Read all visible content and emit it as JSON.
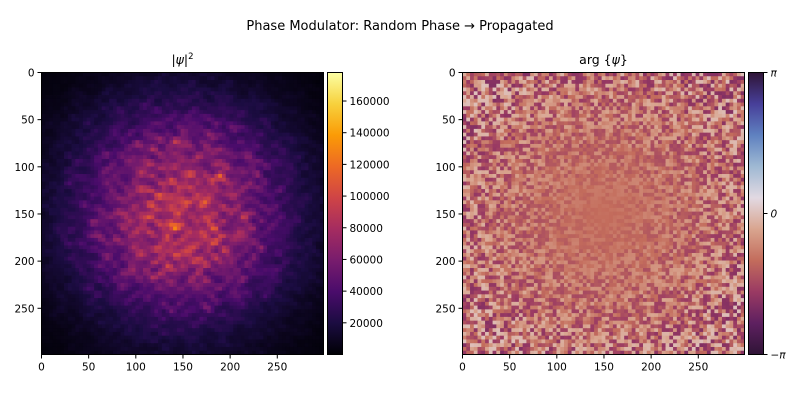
{
  "title": "Phase Modulator: Random Phase → Propagated",
  "chart_data": [
    {
      "type": "heatmap",
      "title": {
        "prefix": "|",
        "var": "ψ",
        "suffix": "|",
        "sup": "2"
      },
      "xlim": [
        0,
        299
      ],
      "ylim": [
        299,
        0
      ],
      "xticks": [
        0,
        50,
        100,
        150,
        200,
        250
      ],
      "yticks": [
        0,
        50,
        100,
        150,
        200,
        250
      ],
      "colormap": "inferno",
      "colorbar": {
        "range": [
          0,
          178000
        ],
        "ticks": [
          20000,
          40000,
          60000,
          80000,
          100000,
          120000,
          140000,
          160000
        ],
        "tick_labels": [
          "20000",
          "40000",
          "60000",
          "80000",
          "100000",
          "120000",
          "140000",
          "160000"
        ]
      },
      "description_values": {
        "peak_center": [
          150,
          150
        ],
        "max_intensity": 175000
      }
    },
    {
      "type": "heatmap",
      "title": {
        "prefix": "arg {",
        "var": "ψ",
        "suffix": "}"
      },
      "xlim": [
        0,
        299
      ],
      "ylim": [
        299,
        0
      ],
      "xticks": [
        0,
        50,
        100,
        150,
        200,
        250
      ],
      "yticks": [
        0,
        50,
        100,
        150,
        200,
        250
      ],
      "colormap": "twilight_shifted",
      "colorbar": {
        "range": [
          -3.14159,
          3.14159
        ],
        "ticks": [
          3.14159,
          0,
          -3.14159
        ],
        "tick_labels": [
          "π",
          "0",
          "−π"
        ]
      }
    }
  ],
  "colors": {
    "background": "#ffffff",
    "inferno": [
      "#000004",
      "#1b0c41",
      "#4a0c6b",
      "#781c6d",
      "#a52c60",
      "#cf4446",
      "#ed6925",
      "#fb9b06",
      "#f7d13d",
      "#fcffa4"
    ],
    "twilight_shifted": [
      "#2f1436",
      "#5e2060",
      "#9a3a63",
      "#c36c5c",
      "#d9a58f",
      "#e2d9e2",
      "#9fb9d3",
      "#5f81c0",
      "#473f99",
      "#2f1436"
    ]
  }
}
